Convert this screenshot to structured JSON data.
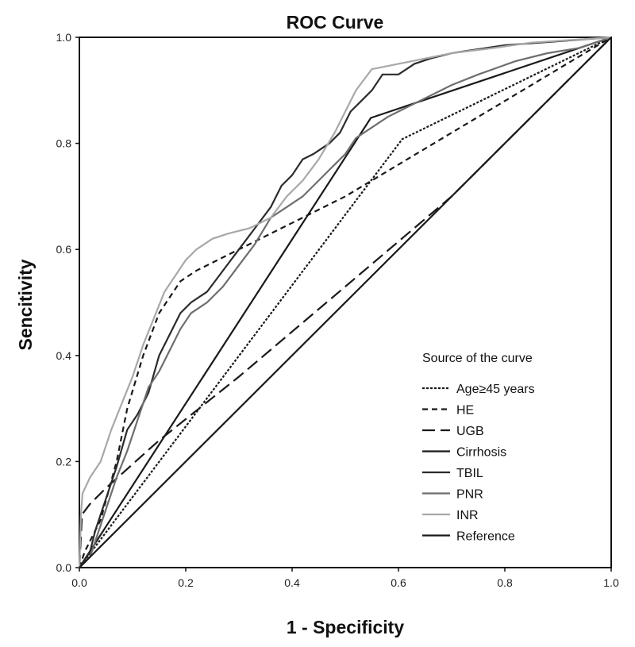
{
  "chart_data": {
    "type": "line",
    "title": "ROC Curve",
    "xlabel": "1 - Specificity",
    "ylabel": "Sencitivity",
    "xlim": [
      0,
      1
    ],
    "ylim": [
      0,
      1
    ],
    "xticks": [
      "0.0",
      "0.2",
      "0.4",
      "0.6",
      "0.8",
      "1.0"
    ],
    "yticks": [
      "0.0",
      "0.2",
      "0.4",
      "0.6",
      "0.8",
      "1.0"
    ],
    "grid": false,
    "legend_title": "Source of the curve",
    "legend_position": "bottom-right",
    "series": [
      {
        "name": "Age≥45 years",
        "color": "#1a1a1a",
        "dash": "3,2",
        "points": [
          [
            0,
            0
          ],
          [
            0.607,
            0.808
          ],
          [
            1,
            1
          ]
        ]
      },
      {
        "name": "HE",
        "color": "#1a1a1a",
        "dash": "7,5",
        "points": [
          [
            0,
            0
          ],
          [
            0.01,
            0.03
          ],
          [
            0.04,
            0.09
          ],
          [
            0.07,
            0.2
          ],
          [
            0.09,
            0.3
          ],
          [
            0.12,
            0.4
          ],
          [
            0.15,
            0.48
          ],
          [
            0.19,
            0.54
          ],
          [
            0.22,
            0.56
          ],
          [
            0.3,
            0.6
          ],
          [
            0.4,
            0.65
          ],
          [
            0.5,
            0.7
          ],
          [
            0.6,
            0.76
          ],
          [
            0.7,
            0.82
          ],
          [
            0.8,
            0.88
          ],
          [
            0.9,
            0.94
          ],
          [
            1,
            1
          ]
        ]
      },
      {
        "name": "UGB",
        "color": "#1a1a1a",
        "dash": "16,7",
        "points": [
          [
            0,
            0
          ],
          [
            0.005,
            0.1
          ],
          [
            0.02,
            0.12
          ],
          [
            0.05,
            0.15
          ],
          [
            0.15,
            0.24
          ],
          [
            0.3,
            0.36
          ],
          [
            0.5,
            0.53
          ],
          [
            0.7,
            0.7
          ],
          [
            0.85,
            0.85
          ],
          [
            1,
            1
          ]
        ]
      },
      {
        "name": "Cirrhosis",
        "color": "#1a1a1a",
        "dash": "",
        "points": [
          [
            0,
            0
          ],
          [
            0.548,
            0.848
          ],
          [
            1,
            1
          ]
        ]
      },
      {
        "name": "TBIL",
        "color": "#2b2b2b",
        "dash": "",
        "points": [
          [
            0,
            0
          ],
          [
            0.02,
            0.03
          ],
          [
            0.03,
            0.07
          ],
          [
            0.05,
            0.13
          ],
          [
            0.07,
            0.19
          ],
          [
            0.09,
            0.26
          ],
          [
            0.11,
            0.29
          ],
          [
            0.13,
            0.33
          ],
          [
            0.15,
            0.4
          ],
          [
            0.17,
            0.44
          ],
          [
            0.19,
            0.48
          ],
          [
            0.21,
            0.5
          ],
          [
            0.24,
            0.52
          ],
          [
            0.27,
            0.56
          ],
          [
            0.3,
            0.6
          ],
          [
            0.33,
            0.64
          ],
          [
            0.36,
            0.68
          ],
          [
            0.38,
            0.72
          ],
          [
            0.4,
            0.74
          ],
          [
            0.42,
            0.77
          ],
          [
            0.44,
            0.78
          ],
          [
            0.47,
            0.8
          ],
          [
            0.49,
            0.82
          ],
          [
            0.51,
            0.86
          ],
          [
            0.53,
            0.88
          ],
          [
            0.55,
            0.9
          ],
          [
            0.57,
            0.93
          ],
          [
            0.6,
            0.93
          ],
          [
            0.63,
            0.95
          ],
          [
            0.66,
            0.96
          ],
          [
            0.7,
            0.97
          ],
          [
            0.8,
            0.985
          ],
          [
            1,
            1
          ]
        ]
      },
      {
        "name": "PNR",
        "color": "#6e6e6e",
        "dash": "",
        "points": [
          [
            0,
            0
          ],
          [
            0.02,
            0.02
          ],
          [
            0.03,
            0.05
          ],
          [
            0.05,
            0.11
          ],
          [
            0.07,
            0.17
          ],
          [
            0.09,
            0.22
          ],
          [
            0.11,
            0.28
          ],
          [
            0.13,
            0.34
          ],
          [
            0.15,
            0.37
          ],
          [
            0.17,
            0.41
          ],
          [
            0.19,
            0.45
          ],
          [
            0.21,
            0.48
          ],
          [
            0.24,
            0.5
          ],
          [
            0.27,
            0.53
          ],
          [
            0.3,
            0.57
          ],
          [
            0.33,
            0.61
          ],
          [
            0.36,
            0.66
          ],
          [
            0.39,
            0.68
          ],
          [
            0.42,
            0.7
          ],
          [
            0.45,
            0.73
          ],
          [
            0.48,
            0.76
          ],
          [
            0.5,
            0.78
          ],
          [
            0.52,
            0.81
          ],
          [
            0.55,
            0.83
          ],
          [
            0.58,
            0.85
          ],
          [
            0.62,
            0.87
          ],
          [
            0.66,
            0.89
          ],
          [
            0.7,
            0.91
          ],
          [
            0.75,
            0.93
          ],
          [
            0.82,
            0.955
          ],
          [
            0.88,
            0.97
          ],
          [
            0.94,
            0.98
          ],
          [
            1,
            1
          ]
        ]
      },
      {
        "name": "INR",
        "color": "#a8a8a8",
        "dash": "",
        "points": [
          [
            0,
            0
          ],
          [
            0.003,
            0.1
          ],
          [
            0.006,
            0.14
          ],
          [
            0.02,
            0.17
          ],
          [
            0.04,
            0.2
          ],
          [
            0.06,
            0.26
          ],
          [
            0.08,
            0.31
          ],
          [
            0.1,
            0.36
          ],
          [
            0.12,
            0.42
          ],
          [
            0.14,
            0.47
          ],
          [
            0.16,
            0.52
          ],
          [
            0.18,
            0.55
          ],
          [
            0.2,
            0.58
          ],
          [
            0.22,
            0.6
          ],
          [
            0.25,
            0.62
          ],
          [
            0.28,
            0.63
          ],
          [
            0.32,
            0.64
          ],
          [
            0.36,
            0.66
          ],
          [
            0.39,
            0.7
          ],
          [
            0.42,
            0.73
          ],
          [
            0.45,
            0.77
          ],
          [
            0.48,
            0.82
          ],
          [
            0.5,
            0.86
          ],
          [
            0.52,
            0.9
          ],
          [
            0.55,
            0.94
          ],
          [
            0.6,
            0.95
          ],
          [
            0.65,
            0.96
          ],
          [
            0.7,
            0.97
          ],
          [
            0.78,
            0.98
          ],
          [
            0.85,
            0.99
          ],
          [
            1,
            1
          ]
        ]
      },
      {
        "name": "Reference",
        "color": "#1a1a1a",
        "dash": "",
        "points": [
          [
            0,
            0
          ],
          [
            1,
            1
          ]
        ]
      }
    ]
  }
}
